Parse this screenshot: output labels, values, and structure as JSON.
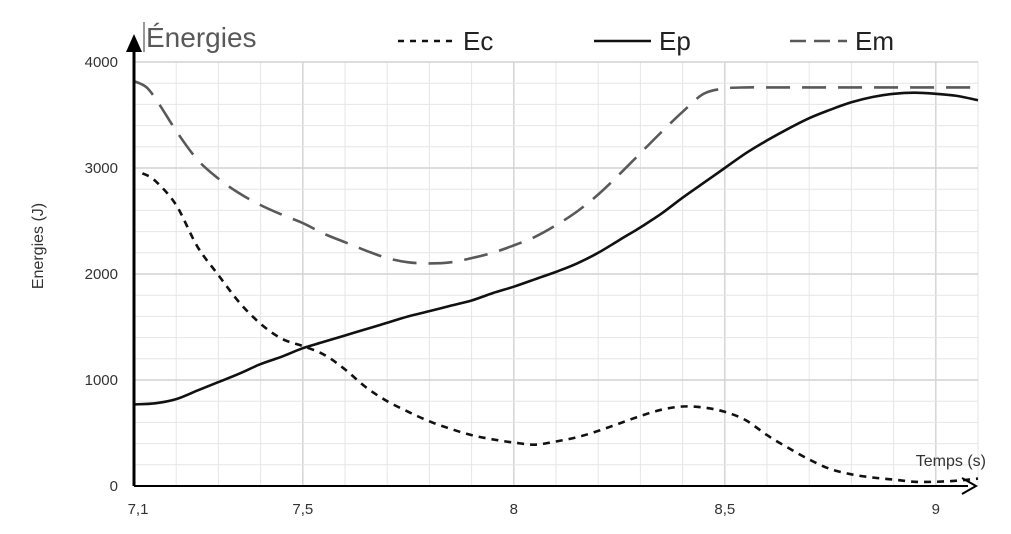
{
  "chart_data": {
    "type": "line",
    "title": "Énergies",
    "xlabel": "Temps (s)",
    "ylabel": "Energies (J)",
    "xlim": [
      7.1,
      9.1
    ],
    "ylim": [
      0,
      4000
    ],
    "xticks": [
      7.1,
      7.5,
      8,
      8.5,
      9
    ],
    "xtick_labels": [
      "7,1",
      "7,5",
      "8",
      "8,5",
      "9"
    ],
    "yticks": [
      0,
      1000,
      2000,
      3000,
      4000
    ],
    "ytick_labels": [
      "0",
      "1000",
      "2000",
      "3000",
      "4000"
    ],
    "grid": true,
    "legend_position": "top",
    "series": [
      {
        "name": "Ec",
        "style": "dotted",
        "color": "#111111",
        "x": [
          7.12,
          7.15,
          7.2,
          7.25,
          7.3,
          7.35,
          7.4,
          7.45,
          7.5,
          7.55,
          7.6,
          7.65,
          7.7,
          7.75,
          7.8,
          7.85,
          7.9,
          7.95,
          8.0,
          8.05,
          8.1,
          8.15,
          8.2,
          8.25,
          8.3,
          8.35,
          8.4,
          8.45,
          8.5,
          8.55,
          8.6,
          8.65,
          8.7,
          8.75,
          8.8,
          8.85,
          8.9,
          8.95,
          9.0,
          9.05,
          9.1
        ],
        "y": [
          2950,
          2880,
          2650,
          2260,
          1990,
          1730,
          1530,
          1390,
          1320,
          1240,
          1100,
          930,
          800,
          700,
          610,
          540,
          480,
          440,
          410,
          390,
          420,
          460,
          520,
          590,
          660,
          720,
          750,
          740,
          700,
          620,
          480,
          360,
          250,
          160,
          110,
          80,
          60,
          40,
          40,
          50,
          70
        ]
      },
      {
        "name": "Ep",
        "style": "solid",
        "color": "#111111",
        "x": [
          7.1,
          7.15,
          7.2,
          7.25,
          7.3,
          7.35,
          7.4,
          7.45,
          7.5,
          7.55,
          7.6,
          7.65,
          7.7,
          7.75,
          7.8,
          7.85,
          7.9,
          7.95,
          8.0,
          8.05,
          8.1,
          8.15,
          8.2,
          8.25,
          8.3,
          8.35,
          8.4,
          8.45,
          8.5,
          8.55,
          8.6,
          8.65,
          8.7,
          8.75,
          8.8,
          8.85,
          8.9,
          8.95,
          9.0,
          9.05,
          9.1
        ],
        "y": [
          770,
          780,
          820,
          900,
          980,
          1060,
          1150,
          1220,
          1300,
          1360,
          1420,
          1480,
          1540,
          1600,
          1650,
          1700,
          1750,
          1820,
          1880,
          1950,
          2020,
          2100,
          2200,
          2320,
          2440,
          2570,
          2720,
          2860,
          3000,
          3140,
          3260,
          3370,
          3470,
          3550,
          3620,
          3670,
          3700,
          3710,
          3700,
          3680,
          3640
        ]
      },
      {
        "name": "Em",
        "style": "dashed",
        "color": "#595959",
        "x": [
          7.1,
          7.13,
          7.16,
          7.2,
          7.25,
          7.3,
          7.35,
          7.4,
          7.45,
          7.5,
          7.55,
          7.6,
          7.65,
          7.7,
          7.75,
          7.8,
          7.85,
          7.9,
          7.95,
          8.0,
          8.05,
          8.1,
          8.15,
          8.2,
          8.25,
          8.3,
          8.35,
          8.4,
          8.45,
          8.5,
          8.55,
          8.6,
          8.65,
          8.7,
          8.75,
          8.8,
          8.85,
          8.9,
          8.95,
          9.0,
          9.05,
          9.1
        ],
        "y": [
          3820,
          3760,
          3600,
          3350,
          3080,
          2900,
          2760,
          2650,
          2560,
          2480,
          2380,
          2300,
          2220,
          2150,
          2110,
          2100,
          2110,
          2150,
          2200,
          2270,
          2350,
          2460,
          2590,
          2750,
          2940,
          3140,
          3340,
          3530,
          3700,
          3750,
          3760,
          3760,
          3760,
          3760,
          3760,
          3760,
          3760,
          3760,
          3760,
          3760,
          3760,
          3760
        ]
      }
    ]
  }
}
